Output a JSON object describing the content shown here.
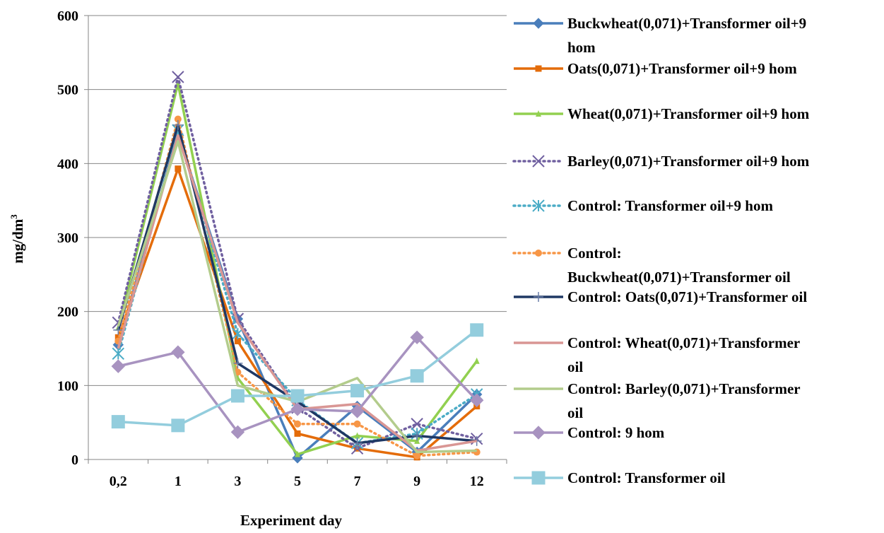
{
  "chart_data": {
    "type": "line",
    "xlabel": "Experiment day",
    "ylabel": "mg/dm",
    "ylabel_superscript": "3",
    "categories": [
      "0,2",
      "1",
      "3",
      "5",
      "7",
      "9",
      "12"
    ],
    "ylim": [
      0,
      600
    ],
    "yticks": [
      "0",
      "100",
      "200",
      "300",
      "400",
      "500",
      "600"
    ],
    "grid": true,
    "legend_position": "right",
    "series": [
      {
        "name_lines": [
          "Buckwheat(0,071)+Transformer oil+9",
          "hom"
        ],
        "color": "#4a7ebb",
        "dash": "solid",
        "marker": "diamond",
        "marker_size": 7,
        "values": [
          155,
          440,
          190,
          2,
          72,
          10,
          88
        ]
      },
      {
        "name_lines": [
          "Oats(0,071)+Transformer oil+9 hom"
        ],
        "color": "#e46c0a",
        "dash": "solid",
        "marker": "square-small",
        "marker_size": 4,
        "values": [
          165,
          393,
          160,
          35,
          15,
          3,
          72
        ]
      },
      {
        "name_lines": [
          "Wheat(0,071)+Transformer oil+9 hom"
        ],
        "color": "#92d050",
        "dash": "solid",
        "marker": "triangle",
        "marker_size": 4,
        "values": [
          178,
          508,
          110,
          7,
          32,
          25,
          133
        ]
      },
      {
        "name_lines": [
          "Barley(0,071)+Transformer oil+9 hom"
        ],
        "color": "#7060a0",
        "dash": "dot",
        "marker": "x",
        "marker_size": 8,
        "values": [
          185,
          517,
          190,
          70,
          15,
          48,
          28
        ]
      },
      {
        "name_lines": [
          "Control: Transformer oil+9 hom"
        ],
        "color": "#4bacc6",
        "dash": "dot",
        "marker": "asterisk",
        "marker_size": 8,
        "values": [
          143,
          445,
          170,
          80,
          22,
          35,
          88
        ]
      },
      {
        "name_lines": [
          "Control:",
          "Buckwheat(0,071)+Transformer oil"
        ],
        "color": "#f79646",
        "dash": "dot",
        "marker": "circle",
        "marker_size": 5,
        "values": [
          160,
          460,
          118,
          48,
          48,
          5,
          10
        ]
      },
      {
        "name_lines": [
          "Control: Oats(0,071)+Transformer oil"
        ],
        "color": "#1f3864",
        "dash": "solid",
        "marker": "plus",
        "marker_size": 7,
        "values": [
          175,
          452,
          130,
          78,
          22,
          32,
          25
        ]
      },
      {
        "name_lines": [
          "Control: Wheat(0,071)+Transformer",
          "oil"
        ],
        "color": "#d99694",
        "dash": "solid",
        "marker": "none",
        "marker_size": 0,
        "values": [
          150,
          438,
          185,
          68,
          75,
          12,
          25
        ]
      },
      {
        "name_lines": [
          "Control: Barley(0,071)+Transformer",
          "oil"
        ],
        "color": "#b3cc8c",
        "dash": "solid",
        "marker": "none",
        "marker_size": 0,
        "values": [
          180,
          430,
          100,
          78,
          110,
          10,
          12
        ]
      },
      {
        "name_lines": [
          "Control: 9 hom"
        ],
        "color": "#a893c0",
        "dash": "solid",
        "marker": "diamond",
        "marker_size": 9,
        "values": [
          126,
          145,
          37,
          68,
          65,
          165,
          80
        ]
      },
      {
        "name_lines": [
          "Control: Transformer oil"
        ],
        "color": "#93cddd",
        "dash": "solid",
        "marker": "square",
        "marker_size": 9,
        "values": [
          51,
          46,
          86,
          86,
          93,
          113,
          175
        ]
      }
    ]
  }
}
